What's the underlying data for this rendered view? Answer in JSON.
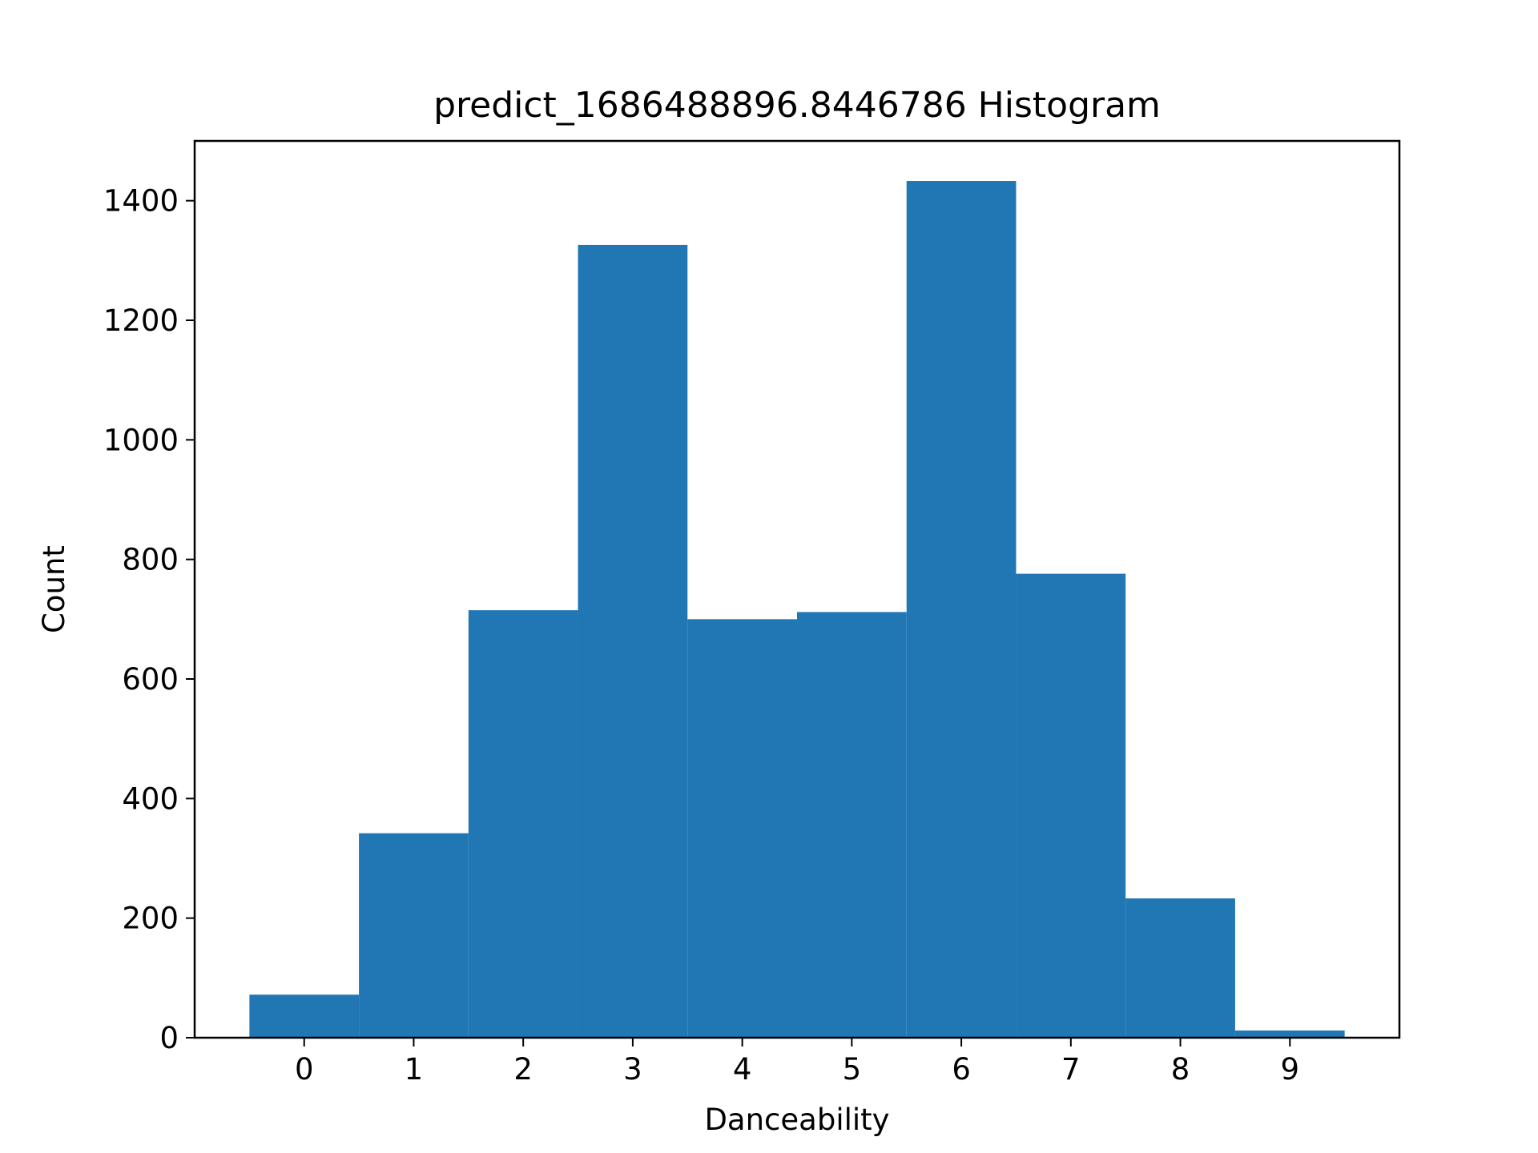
{
  "chart_data": {
    "type": "bar",
    "title": "predict_1686488896.8446786 Histogram",
    "xlabel": "Danceability",
    "ylabel": "Count",
    "categories": [
      "0",
      "1",
      "2",
      "3",
      "4",
      "5",
      "6",
      "7",
      "8",
      "9"
    ],
    "bins": [
      {
        "x": 0,
        "value": 72
      },
      {
        "x": 1,
        "value": 342
      },
      {
        "x": 2,
        "value": 715
      },
      {
        "x": 3,
        "value": 1326
      },
      {
        "x": 4,
        "value": 700
      },
      {
        "x": 5,
        "value": 712
      },
      {
        "x": 6,
        "value": 1433
      },
      {
        "x": 7,
        "value": 776
      },
      {
        "x": 8,
        "value": 233
      },
      {
        "x": 9,
        "value": 12
      }
    ],
    "bin_width": 1,
    "xlim": [
      -1.0,
      10.0
    ],
    "ylim": [
      0,
      1500
    ],
    "xticks": [
      0,
      1,
      2,
      3,
      4,
      5,
      6,
      7,
      8,
      9
    ],
    "yticks": [
      0,
      200,
      400,
      600,
      800,
      1000,
      1200,
      1400
    ],
    "ytick_labels": [
      "0",
      "200",
      "400",
      "600",
      "800",
      "1000",
      "1200",
      "1400"
    ],
    "grid": false,
    "legend": "none",
    "colors": {
      "bar": "#2077b4",
      "axes": "#000000",
      "background": "#ffffff"
    }
  }
}
